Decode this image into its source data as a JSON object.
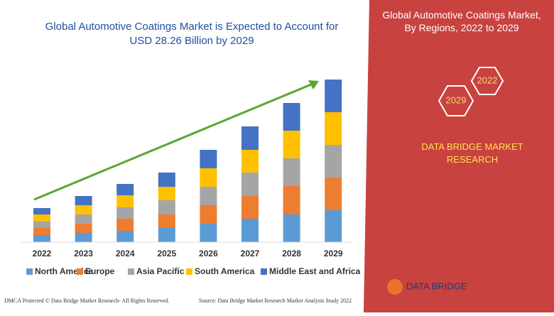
{
  "chart_data": {
    "type": "stacked-bar",
    "title": "Global Automotive Coatings Market is Expected to Account for USD 28.26 Billion by 2029",
    "categories": [
      "2022",
      "2023",
      "2024",
      "2025",
      "2026",
      "2027",
      "2028",
      "2029"
    ],
    "series": [
      {
        "name": "North America",
        "color": "#5b9bd5",
        "values": [
          10,
          13,
          16,
          20,
          26,
          33,
          39,
          45
        ]
      },
      {
        "name": "Europe",
        "color": "#ed7d31",
        "values": [
          10,
          13,
          17,
          19,
          26,
          32,
          40,
          46
        ]
      },
      {
        "name": "Asia Pacific",
        "color": "#a5a5a5",
        "values": [
          9,
          13,
          16,
          20,
          26,
          33,
          39,
          46
        ]
      },
      {
        "name": "South America",
        "color": "#ffc000",
        "values": [
          10,
          13,
          17,
          19,
          26,
          32,
          39,
          46
        ]
      },
      {
        "name": "Middle East and Africa",
        "color": "#4472c4",
        "values": [
          9,
          13,
          16,
          20,
          26,
          33,
          39,
          46
        ]
      }
    ]
  },
  "panel": {
    "title": "Global Automotive Coatings Market, By Regions, 2022 to 2029",
    "hex_start": "2022",
    "hex_end": "2029",
    "brand": "DATA BRIDGE MARKET RESEARCH"
  },
  "footer": {
    "left": "DMCA Protected © Data Bridge Market Research- All Rights Reserved.",
    "source": "Source: Data Bridge Market Research Market Analysis Study 2022",
    "logo": "DATA BRIDGE"
  }
}
